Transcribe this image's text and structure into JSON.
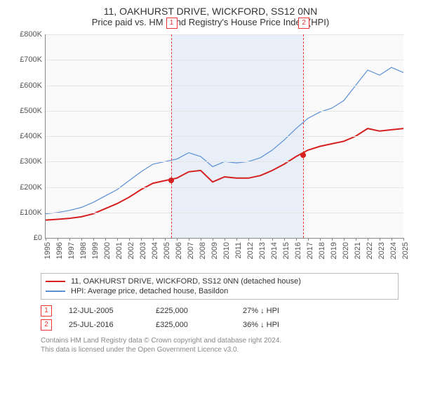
{
  "title_line1": "11, OAKHURST DRIVE, WICKFORD, SS12 0NN",
  "title_line2": "Price paid vs. HM Land Registry's House Price Index (HPI)",
  "chart": {
    "type": "line",
    "x_years": [
      1995,
      1996,
      1997,
      1998,
      1999,
      2000,
      2001,
      2002,
      2003,
      2004,
      2005,
      2006,
      2007,
      2008,
      2009,
      2010,
      2011,
      2012,
      2013,
      2014,
      2015,
      2016,
      2017,
      2018,
      2019,
      2020,
      2021,
      2022,
      2023,
      2024,
      2025
    ],
    "ylim": [
      0,
      800000
    ],
    "ytick_step": 100000,
    "ytick_labels": [
      "£0",
      "£100K",
      "£200K",
      "£300K",
      "£400K",
      "£500K",
      "£600K",
      "£700K",
      "£800K"
    ],
    "background_color": "#fafafa",
    "grid_color": "#e5e5e5",
    "band_color": "#dce8f7",
    "band_start_year": 2005.5,
    "band_end_year": 2016.6,
    "series": [
      {
        "name": "property",
        "label": "11, OAKHURST DRIVE, WICKFORD, SS12 0NN (detached house)",
        "color": "#d62020",
        "width": 2,
        "y": [
          70000,
          73000,
          77000,
          83000,
          95000,
          115000,
          135000,
          160000,
          190000,
          215000,
          225000,
          235000,
          260000,
          265000,
          220000,
          240000,
          235000,
          235000,
          245000,
          265000,
          290000,
          320000,
          345000,
          360000,
          370000,
          380000,
          400000,
          430000,
          420000,
          425000,
          430000
        ]
      },
      {
        "name": "hpi",
        "label": "HPI: Average price, detached house, Basildon",
        "color": "#5b8fd6",
        "width": 1.2,
        "y": [
          95000,
          100000,
          108000,
          120000,
          140000,
          165000,
          190000,
          225000,
          260000,
          290000,
          300000,
          310000,
          335000,
          320000,
          280000,
          300000,
          295000,
          300000,
          315000,
          345000,
          385000,
          430000,
          470000,
          495000,
          510000,
          540000,
          600000,
          660000,
          640000,
          670000,
          650000
        ]
      }
    ],
    "vlines": [
      {
        "id": "1",
        "year": 2005.5
      },
      {
        "id": "2",
        "year": 2016.6
      }
    ],
    "sale_dots": [
      {
        "year": 2005.5,
        "price": 225000,
        "color": "#d62020"
      },
      {
        "year": 2016.6,
        "price": 325000,
        "color": "#d62020"
      }
    ]
  },
  "legend": {
    "rows": [
      {
        "color": "#d62020",
        "label": "11, OAKHURST DRIVE, WICKFORD, SS12 0NN (detached house)"
      },
      {
        "color": "#5b8fd6",
        "label": "HPI: Average price, detached house, Basildon"
      }
    ]
  },
  "transactions": [
    {
      "id": "1",
      "date": "12-JUL-2005",
      "price": "£225,000",
      "delta": "27% ↓ HPI"
    },
    {
      "id": "2",
      "date": "25-JUL-2016",
      "price": "£325,000",
      "delta": "36% ↓ HPI"
    }
  ],
  "footer": {
    "line1": "Contains HM Land Registry data © Crown copyright and database right 2024.",
    "line2": "This data is licensed under the Open Government Licence v3.0."
  }
}
